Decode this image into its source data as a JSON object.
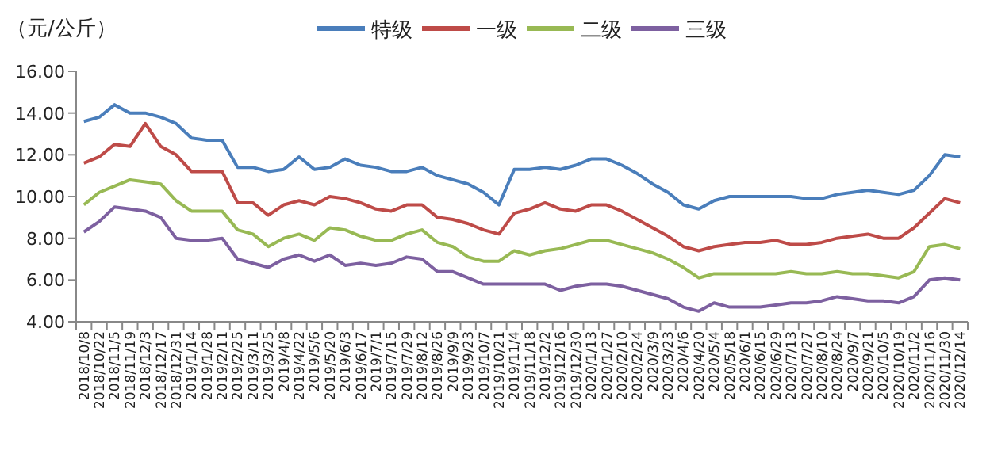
{
  "chart_data": {
    "type": "line",
    "ylabel": "（元/公斤）",
    "categories": [
      "2018/10/8",
      "2018/10/22",
      "2018/11/5",
      "2018/11/19",
      "2018/12/3",
      "2018/12/17",
      "2018/12/31",
      "2019/1/14",
      "2019/1/28",
      "2019/2/11",
      "2019/2/25",
      "2019/3/11",
      "2019/3/25",
      "2019/4/8",
      "2019/4/22",
      "2019/5/6",
      "2019/5/20",
      "2019/6/3",
      "2019/6/17",
      "2019/7/1",
      "2019/7/15",
      "2019/7/29",
      "2019/8/12",
      "2019/8/26",
      "2019/9/9",
      "2019/9/23",
      "2019/10/7",
      "2019/10/21",
      "2019/11/4",
      "2019/11/18",
      "2019/12/2",
      "2019/12/16",
      "2019/12/30",
      "2020/1/13",
      "2020/1/27",
      "2020/2/10",
      "2020/2/24",
      "2020/3/9",
      "2020/3/23",
      "2020/4/6",
      "2020/4/20",
      "2020/5/4",
      "2020/5/18",
      "2020/6/1",
      "2020/6/15",
      "2020/6/29",
      "2020/7/13",
      "2020/7/27",
      "2020/8/10",
      "2020/8/24",
      "2020/9/7",
      "2020/9/21",
      "2020/10/5",
      "2020/10/19",
      "2020/11/2",
      "2020/11/16",
      "2020/11/30",
      "2020/12/14"
    ],
    "series": [
      {
        "name": "特级",
        "color": "#4a7ebb",
        "values": [
          13.6,
          13.8,
          14.4,
          14.0,
          14.0,
          13.8,
          13.5,
          12.8,
          12.7,
          12.7,
          11.4,
          11.4,
          11.2,
          11.3,
          11.9,
          11.3,
          11.4,
          11.8,
          11.5,
          11.4,
          11.2,
          11.2,
          11.4,
          11.0,
          10.8,
          10.6,
          10.2,
          9.6,
          11.3,
          11.3,
          11.4,
          11.3,
          11.5,
          11.8,
          11.8,
          11.5,
          11.1,
          10.6,
          10.2,
          9.6,
          9.4,
          9.8,
          10.0,
          10.0,
          10.0,
          10.0,
          10.0,
          9.9,
          9.9,
          10.1,
          10.2,
          10.3,
          10.2,
          10.1,
          10.3,
          11.0,
          12.0,
          11.9
        ]
      },
      {
        "name": "一级",
        "color": "#be4b48",
        "values": [
          11.6,
          11.9,
          12.5,
          12.4,
          13.5,
          12.4,
          12.0,
          11.2,
          11.2,
          11.2,
          9.7,
          9.7,
          9.1,
          9.6,
          9.8,
          9.6,
          10.0,
          9.9,
          9.7,
          9.4,
          9.3,
          9.6,
          9.6,
          9.0,
          8.9,
          8.7,
          8.4,
          8.2,
          9.2,
          9.4,
          9.7,
          9.4,
          9.3,
          9.6,
          9.6,
          9.3,
          8.9,
          8.5,
          8.1,
          7.6,
          7.4,
          7.6,
          7.7,
          7.8,
          7.8,
          7.9,
          7.7,
          7.7,
          7.8,
          8.0,
          8.1,
          8.2,
          8.0,
          8.0,
          8.5,
          9.2,
          9.9,
          9.7
        ]
      },
      {
        "name": "二级",
        "color": "#98b954",
        "values": [
          9.6,
          10.2,
          10.5,
          10.8,
          10.7,
          10.6,
          9.8,
          9.3,
          9.3,
          9.3,
          8.4,
          8.2,
          7.6,
          8.0,
          8.2,
          7.9,
          8.5,
          8.4,
          8.1,
          7.9,
          7.9,
          8.2,
          8.4,
          7.8,
          7.6,
          7.1,
          6.9,
          6.9,
          7.4,
          7.2,
          7.4,
          7.5,
          7.7,
          7.9,
          7.9,
          7.7,
          7.5,
          7.3,
          7.0,
          6.6,
          6.1,
          6.3,
          6.3,
          6.3,
          6.3,
          6.3,
          6.4,
          6.3,
          6.3,
          6.4,
          6.3,
          6.3,
          6.2,
          6.1,
          6.4,
          7.6,
          7.7,
          7.5
        ]
      },
      {
        "name": "三级",
        "color": "#7d60a0",
        "values": [
          8.3,
          8.8,
          9.5,
          9.4,
          9.3,
          9.0,
          8.0,
          7.9,
          7.9,
          8.0,
          7.0,
          6.8,
          6.6,
          7.0,
          7.2,
          6.9,
          7.2,
          6.7,
          6.8,
          6.7,
          6.8,
          7.1,
          7.0,
          6.4,
          6.4,
          6.1,
          5.8,
          5.8,
          5.8,
          5.8,
          5.8,
          5.5,
          5.7,
          5.8,
          5.8,
          5.7,
          5.5,
          5.3,
          5.1,
          4.7,
          4.5,
          4.9,
          4.7,
          4.7,
          4.7,
          4.8,
          4.9,
          4.9,
          5.0,
          5.2,
          5.1,
          5.0,
          5.0,
          4.9,
          5.2,
          6.0,
          6.1,
          6.0
        ]
      }
    ],
    "ylim": [
      4,
      16
    ],
    "yticks": [
      {
        "value": 4,
        "label": "4.00"
      },
      {
        "value": 6,
        "label": "6.00"
      },
      {
        "value": 8,
        "label": "8.00"
      },
      {
        "value": 10,
        "label": "10.00"
      },
      {
        "value": 12,
        "label": "12.00"
      },
      {
        "value": 14,
        "label": "14.00"
      },
      {
        "value": 16,
        "label": "16.00"
      }
    ],
    "legend": "top",
    "grid": false
  }
}
